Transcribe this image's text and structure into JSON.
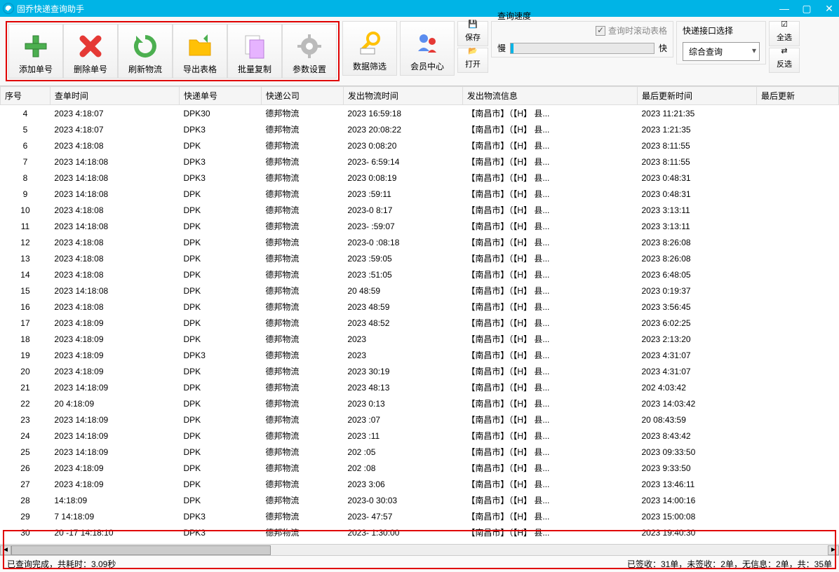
{
  "window": {
    "title": "固乔快递查询助手"
  },
  "toolbar": {
    "add": "添加单号",
    "delete": "删除单号",
    "refresh": "刷新物流",
    "export": "导出表格",
    "batch_copy": "批量复制",
    "settings": "参数设置",
    "filter": "数据筛选",
    "member": "会员中心",
    "save": "保存",
    "open": "打开",
    "select_all": "全选",
    "invert": "反选"
  },
  "query_speed": {
    "label": "查询速度",
    "scroll_checkbox": "查询时滚动表格",
    "slow": "慢",
    "fast": "快",
    "slider_percent": 2
  },
  "interface": {
    "label": "快递接口选择",
    "selected": "综合查询"
  },
  "columns": [
    "序号",
    "查单时间",
    "快递单号",
    "快递公司",
    "发出物流时间",
    "发出物流信息",
    "最后更新时间",
    "最后更新"
  ],
  "common": {
    "company": "德邦物流",
    "city_prefix": "【南昌市】（【H】",
    "city_mid": "县...",
    "city_suffix": ""
  },
  "rows": [
    {
      "seq": "4",
      "t1": "2023",
      "t1b": "4:18:07",
      "ord": "DPK30",
      "st": "2023",
      "stb": "16:59:18",
      "ut": "2023",
      "utb": "11:21:35"
    },
    {
      "seq": "5",
      "t1": "2023",
      "t1b": "4:18:07",
      "ord": "DPK3",
      "st": "2023",
      "stb": "20:08:22",
      "ut": "2023",
      "utb": "1:21:35"
    },
    {
      "seq": "6",
      "t1": "2023",
      "t1b": "4:18:08",
      "ord": "DPK",
      "st": "2023",
      "stb": "0:08:20",
      "ut": "2023",
      "utb": "8:11:55"
    },
    {
      "seq": "7",
      "t1": "2023",
      "t1b": "14:18:08",
      "ord": "DPK3",
      "st": "2023-",
      "stb": "6:59:14",
      "ut": "2023",
      "utb": "8:11:55"
    },
    {
      "seq": "8",
      "t1": "2023",
      "t1b": "14:18:08",
      "ord": "DPK3",
      "st": "2023",
      "stb": "0:08:19",
      "ut": "2023",
      "utb": "0:48:31"
    },
    {
      "seq": "9",
      "t1": "2023",
      "t1b": "14:18:08",
      "ord": "DPK",
      "st": "2023",
      "stb": ":59:11",
      "ut": "2023",
      "utb": "0:48:31"
    },
    {
      "seq": "10",
      "t1": "2023",
      "t1b": "4:18:08",
      "ord": "DPK",
      "st": "2023-0",
      "stb": "8:17",
      "ut": "2023",
      "utb": "3:13:11"
    },
    {
      "seq": "11",
      "t1": "2023",
      "t1b": "14:18:08",
      "ord": "DPK",
      "st": "2023-",
      "stb": ":59:07",
      "ut": "2023",
      "utb": "3:13:11"
    },
    {
      "seq": "12",
      "t1": "2023",
      "t1b": "4:18:08",
      "ord": "DPK",
      "st": "2023-0",
      "stb": ":08:18",
      "ut": "2023",
      "utb": "8:26:08"
    },
    {
      "seq": "13",
      "t1": "2023",
      "t1b": "4:18:08",
      "ord": "DPK",
      "st": "2023",
      "stb": ":59:05",
      "ut": "2023",
      "utb": "8:26:08"
    },
    {
      "seq": "14",
      "t1": "2023",
      "t1b": "4:18:08",
      "ord": "DPK",
      "st": "2023",
      "stb": ":51:05",
      "ut": "2023",
      "utb": "6:48:05"
    },
    {
      "seq": "15",
      "t1": "2023",
      "t1b": "14:18:08",
      "ord": "DPK",
      "st": "20",
      "stb": "48:59",
      "ut": "2023",
      "utb": "0:19:37"
    },
    {
      "seq": "16",
      "t1": "2023",
      "t1b": "4:18:08",
      "ord": "DPK",
      "st": "2023",
      "stb": "48:59",
      "ut": "2023",
      "utb": "3:56:45"
    },
    {
      "seq": "17",
      "t1": "2023",
      "t1b": "4:18:09",
      "ord": "DPK",
      "st": "2023",
      "stb": "48:52",
      "ut": "2023",
      "utb": "6:02:25"
    },
    {
      "seq": "18",
      "t1": "2023",
      "t1b": "4:18:09",
      "ord": "DPK",
      "st": "2023",
      "stb": "",
      "ut": "2023",
      "utb": "2:13:20"
    },
    {
      "seq": "19",
      "t1": "2023",
      "t1b": "4:18:09",
      "ord": "DPK3",
      "st": "2023",
      "stb": "",
      "ut": "2023",
      "utb": "4:31:07"
    },
    {
      "seq": "20",
      "t1": "2023",
      "t1b": "4:18:09",
      "ord": "DPK",
      "st": "2023",
      "stb": "30:19",
      "ut": "2023",
      "utb": "4:31:07"
    },
    {
      "seq": "21",
      "t1": "2023",
      "t1b": "14:18:09",
      "ord": "DPK",
      "st": "2023",
      "stb": "48:13",
      "ut": "202",
      "utb": "4:03:42"
    },
    {
      "seq": "22",
      "t1": "20",
      "t1b": "4:18:09",
      "ord": "DPK",
      "st": "2023",
      "stb": "0:13",
      "ut": "2023",
      "utb": "14:03:42"
    },
    {
      "seq": "23",
      "t1": "2023",
      "t1b": "14:18:09",
      "ord": "DPK",
      "st": "2023",
      "stb": ":07",
      "ut": "20",
      "utb": "08:43:59"
    },
    {
      "seq": "24",
      "t1": "2023",
      "t1b": "14:18:09",
      "ord": "DPK",
      "st": "2023",
      "stb": ":11",
      "ut": "2023",
      "utb": "8:43:42"
    },
    {
      "seq": "25",
      "t1": "2023",
      "t1b": "14:18:09",
      "ord": "DPK",
      "st": "202",
      "stb": ":05",
      "ut": "2023",
      "utb": "09:33:50"
    },
    {
      "seq": "26",
      "t1": "2023",
      "t1b": "4:18:09",
      "ord": "DPK",
      "st": "202",
      "stb": ":08",
      "ut": "2023",
      "utb": "9:33:50"
    },
    {
      "seq": "27",
      "t1": "2023",
      "t1b": "4:18:09",
      "ord": "DPK",
      "st": "2023",
      "stb": "3:06",
      "ut": "2023",
      "utb": "13:46:11"
    },
    {
      "seq": "28",
      "t1": "",
      "t1b": "14:18:09",
      "ord": "DPK",
      "st": "2023-0",
      "stb": "30:03",
      "ut": "2023",
      "utb": "14:00:16"
    },
    {
      "seq": "29",
      "t1": "",
      "t1b": "7 14:18:09",
      "ord": "DPK3",
      "st": "2023-",
      "stb": "47:57",
      "ut": "2023",
      "utb": "15:00:08"
    },
    {
      "seq": "30",
      "t1": "20",
      "t1b": "-17 14:18:10",
      "ord": "DPK3",
      "st": "2023-",
      "stb": "1:30:00",
      "ut": "2023",
      "utb": "19:40:30"
    }
  ],
  "status": {
    "left": "已查询完成，共耗时：3.09秒",
    "right": "已签收：31单，未签收：2单，无信息：2单，共：35单"
  },
  "icons": {
    "add_color": "#4caf50",
    "delete_color": "#e53935",
    "refresh_color": "#4caf50",
    "export_color": "#ffc107",
    "copy_color": "#e6b3ff",
    "settings_color": "#888888",
    "filter_color": "#ffc107",
    "member_color": "#5b8def"
  }
}
